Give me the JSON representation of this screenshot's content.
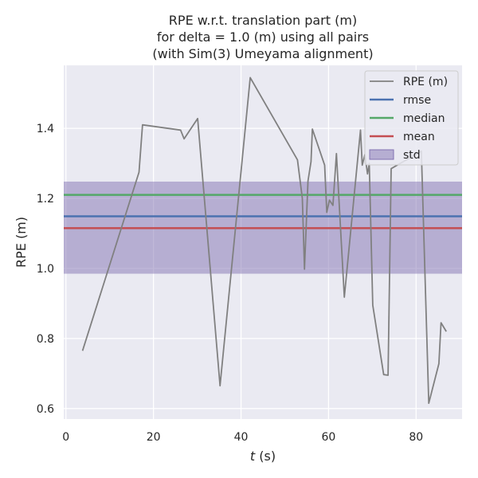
{
  "chart_data": {
    "type": "line",
    "title_lines": [
      "RPE w.r.t. translation part (m)",
      "for delta = 1.0 (m) using all pairs",
      "(with Sim(3) Umeyama alignment)"
    ],
    "xlabel_italic": "t",
    "xlabel_rest": " (s)",
    "ylabel": "RPE (m)",
    "xlim": [
      -0.5,
      90.5
    ],
    "ylim": [
      0.57,
      1.58
    ],
    "xticks": [
      0,
      20,
      40,
      60,
      80
    ],
    "xtick_labels": [
      "0",
      "20",
      "40",
      "60",
      "80"
    ],
    "yticks": [
      0.6,
      0.8,
      1.0,
      1.2,
      1.4
    ],
    "ytick_labels": [
      "0.6",
      "0.8",
      "1.0",
      "1.2",
      "1.4"
    ],
    "grid": true,
    "legend_position": "top-right",
    "series": [
      {
        "name": "RPE (m)",
        "color": "#808080",
        "x": [
          3.8,
          16.7,
          17.5,
          26.2,
          27.0,
          30.1,
          35.2,
          42.1,
          52.9,
          54.0,
          54.5,
          55.3,
          56.0,
          56.3,
          59.1,
          59.6,
          60.2,
          61.0,
          61.8,
          63.6,
          67.3,
          67.7,
          68.3,
          68.9,
          69.3,
          70.1,
          72.6,
          73.6,
          74.3,
          81.2,
          82.9,
          85.2,
          85.7,
          86.9
        ],
        "y": [
          0.765,
          1.275,
          1.41,
          1.395,
          1.37,
          1.428,
          0.665,
          1.545,
          1.31,
          1.2,
          0.998,
          1.25,
          1.305,
          1.398,
          1.295,
          1.16,
          1.195,
          1.18,
          1.328,
          0.918,
          1.395,
          1.295,
          1.325,
          1.27,
          1.3,
          0.895,
          0.697,
          0.695,
          1.285,
          1.335,
          0.615,
          0.728,
          0.845,
          0.82
        ]
      }
    ],
    "stats": [
      {
        "name": "rmse",
        "value": 1.149,
        "color": "#4c72b0"
      },
      {
        "name": "median",
        "value": 1.21,
        "color": "#55a868"
      },
      {
        "name": "mean",
        "value": 1.115,
        "color": "#c44e52"
      }
    ],
    "std": {
      "name": "std",
      "low": 0.985,
      "high": 1.248,
      "color": "#8172b2"
    }
  }
}
